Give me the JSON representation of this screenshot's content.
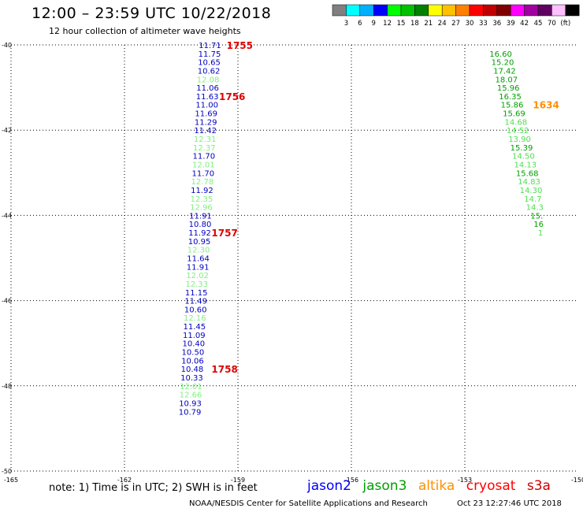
{
  "header": {
    "title": "12:00 – 23:59 UTC 10/22/2018",
    "subtitle": "12 hour collection of altimeter wave heights"
  },
  "colorbar": {
    "colors": [
      "#808080",
      "#00ffff",
      "#00b0ff",
      "#0000ff",
      "#00ff00",
      "#00c000",
      "#008000",
      "#ffff00",
      "#ffc000",
      "#ff8000",
      "#ff0000",
      "#c00000",
      "#800000",
      "#ff00ff",
      "#a000a0",
      "#600060",
      "#ffc0ff",
      "#000000"
    ],
    "labels": [
      "3",
      "6",
      "9",
      "12",
      "15",
      "18",
      "21",
      "24",
      "27",
      "30",
      "33",
      "36",
      "39",
      "42",
      "45",
      "70",
      "(ft)"
    ]
  },
  "footer": {
    "note": "note: 1) Time is in UTC; 2) SWH is in feet",
    "legend": [
      {
        "name": "jason2",
        "color": "#0000ff"
      },
      {
        "name": "jason3",
        "color": "#00a000"
      },
      {
        "name": "altika",
        "color": "#ff9000"
      },
      {
        "name": "cryosat",
        "color": "#ff0000"
      },
      {
        "name": "s3a",
        "color": "#cc0000"
      }
    ],
    "credit": "NOAA/NESDIS Center for Satellite Applications and Research",
    "timestamp": "Oct 23 12:27:46 UTC 2018"
  },
  "chart_data": {
    "type": "scatter",
    "x_ticks": [
      "-165",
      "-162",
      "-159",
      "-156",
      "-153",
      "-150"
    ],
    "y_ticks": [
      "-40",
      "-42",
      "-44",
      "-46",
      "-48",
      "-50"
    ],
    "xlim": [
      -165,
      -150
    ],
    "ylim": [
      -50,
      -40
    ],
    "grid": true,
    "series": [
      {
        "name": "jason2",
        "color_dark": "#0000c0",
        "color_light": "#80f080",
        "points": [
          {
            "x": -159.74,
            "y": -40.0,
            "v": "11.71",
            "c": "d"
          },
          {
            "x": -159.75,
            "y": -40.2,
            "v": "11.75",
            "c": "d"
          },
          {
            "x": -159.76,
            "y": -40.4,
            "v": "10.65",
            "c": "d"
          },
          {
            "x": -159.77,
            "y": -40.6,
            "v": "10.62",
            "c": "d"
          },
          {
            "x": -159.79,
            "y": -40.8,
            "v": "12.08",
            "c": "l"
          },
          {
            "x": -159.8,
            "y": -41.0,
            "v": "11.06",
            "c": "d"
          },
          {
            "x": -159.81,
            "y": -41.2,
            "v": "11.63",
            "c": "d"
          },
          {
            "x": -159.82,
            "y": -41.4,
            "v": "11.00",
            "c": "d"
          },
          {
            "x": -159.84,
            "y": -41.6,
            "v": "11.69",
            "c": "d"
          },
          {
            "x": -159.85,
            "y": -41.8,
            "v": "11.29",
            "c": "d"
          },
          {
            "x": -159.86,
            "y": -42.0,
            "v": "11.42",
            "c": "d"
          },
          {
            "x": -159.87,
            "y": -42.2,
            "v": "12.31",
            "c": "l"
          },
          {
            "x": -159.89,
            "y": -42.4,
            "v": "12.37",
            "c": "l"
          },
          {
            "x": -159.9,
            "y": -42.6,
            "v": "11.70",
            "c": "d"
          },
          {
            "x": -159.91,
            "y": -42.8,
            "v": "12.01",
            "c": "l"
          },
          {
            "x": -159.92,
            "y": -43.0,
            "v": "11.70",
            "c": "d"
          },
          {
            "x": -159.94,
            "y": -43.2,
            "v": "12.78",
            "c": "l"
          },
          {
            "x": -159.95,
            "y": -43.4,
            "v": "11.92",
            "c": "d"
          },
          {
            "x": -159.96,
            "y": -43.6,
            "v": "12.35",
            "c": "l"
          },
          {
            "x": -159.97,
            "y": -43.8,
            "v": "12.96",
            "c": "l"
          },
          {
            "x": -159.99,
            "y": -44.0,
            "v": "11.91",
            "c": "d"
          },
          {
            "x": -160.0,
            "y": -44.2,
            "v": "10.80",
            "c": "d"
          },
          {
            "x": -160.01,
            "y": -44.4,
            "v": "11.92",
            "c": "d"
          },
          {
            "x": -160.02,
            "y": -44.6,
            "v": "10.95",
            "c": "d"
          },
          {
            "x": -160.04,
            "y": -44.8,
            "v": "12.30",
            "c": "l"
          },
          {
            "x": -160.05,
            "y": -45.0,
            "v": "11.64",
            "c": "d"
          },
          {
            "x": -160.06,
            "y": -45.2,
            "v": "11.91",
            "c": "d"
          },
          {
            "x": -160.07,
            "y": -45.4,
            "v": "12.02",
            "c": "l"
          },
          {
            "x": -160.09,
            "y": -45.6,
            "v": "12.33",
            "c": "l"
          },
          {
            "x": -160.1,
            "y": -45.8,
            "v": "11.15",
            "c": "d"
          },
          {
            "x": -160.11,
            "y": -46.0,
            "v": "11.49",
            "c": "d"
          },
          {
            "x": -160.12,
            "y": -46.2,
            "v": "10.60",
            "c": "d"
          },
          {
            "x": -160.14,
            "y": -46.4,
            "v": "12.16",
            "c": "l"
          },
          {
            "x": -160.15,
            "y": -46.6,
            "v": "11.45",
            "c": "d"
          },
          {
            "x": -160.16,
            "y": -46.8,
            "v": "11.09",
            "c": "d"
          },
          {
            "x": -160.17,
            "y": -47.0,
            "v": "10.40",
            "c": "d"
          },
          {
            "x": -160.19,
            "y": -47.2,
            "v": "10.50",
            "c": "d"
          },
          {
            "x": -160.2,
            "y": -47.4,
            "v": "10.06",
            "c": "d"
          },
          {
            "x": -160.21,
            "y": -47.6,
            "v": "10.48",
            "c": "d"
          },
          {
            "x": -160.22,
            "y": -47.8,
            "v": "10.33",
            "c": "d"
          },
          {
            "x": -160.24,
            "y": -48.0,
            "v": "12.01",
            "c": "l"
          },
          {
            "x": -160.25,
            "y": -48.2,
            "v": "12.66",
            "c": "l"
          },
          {
            "x": -160.26,
            "y": -48.4,
            "v": "10.93",
            "c": "d"
          },
          {
            "x": -160.27,
            "y": -48.6,
            "v": "10.79",
            "c": "d"
          }
        ]
      },
      {
        "name": "jason3",
        "color_dark": "#00a000",
        "color_light": "#50e050",
        "points": [
          {
            "x": -152.05,
            "y": -40.2,
            "v": "16.60",
            "c": "d"
          },
          {
            "x": -152.0,
            "y": -40.4,
            "v": "15.20",
            "c": "d"
          },
          {
            "x": -151.95,
            "y": -40.6,
            "v": "17.42",
            "c": "d"
          },
          {
            "x": -151.9,
            "y": -40.8,
            "v": "18.07",
            "c": "d"
          },
          {
            "x": -151.85,
            "y": -41.0,
            "v": "15.96",
            "c": "d"
          },
          {
            "x": -151.8,
            "y": -41.2,
            "v": "16.35",
            "c": "d"
          },
          {
            "x": -151.75,
            "y": -41.4,
            "v": "15.86",
            "c": "d"
          },
          {
            "x": -151.7,
            "y": -41.6,
            "v": "15.69",
            "c": "d"
          },
          {
            "x": -151.65,
            "y": -41.8,
            "v": "14.68",
            "c": "l"
          },
          {
            "x": -151.6,
            "y": -42.0,
            "v": "14.52",
            "c": "l"
          },
          {
            "x": -151.55,
            "y": -42.2,
            "v": "13.90",
            "c": "l"
          },
          {
            "x": -151.5,
            "y": -42.4,
            "v": "15.39",
            "c": "d"
          },
          {
            "x": -151.45,
            "y": -42.6,
            "v": "14.50",
            "c": "l"
          },
          {
            "x": -151.4,
            "y": -42.8,
            "v": "14.13",
            "c": "l"
          },
          {
            "x": -151.35,
            "y": -43.0,
            "v": "15.68",
            "c": "d"
          },
          {
            "x": -151.3,
            "y": -43.2,
            "v": "14.83",
            "c": "l"
          },
          {
            "x": -151.25,
            "y": -43.4,
            "v": "14.30",
            "c": "l"
          },
          {
            "x": -151.2,
            "y": -43.6,
            "v": "14.7",
            "c": "l"
          },
          {
            "x": -151.15,
            "y": -43.8,
            "v": "14.3",
            "c": "l"
          },
          {
            "x": -151.1,
            "y": -44.0,
            "v": "15.",
            "c": "d"
          },
          {
            "x": -151.05,
            "y": -44.2,
            "v": "16",
            "c": "d"
          },
          {
            "x": -151.0,
            "y": -44.4,
            "v": "1",
            "c": "l"
          }
        ]
      }
    ],
    "time_labels": [
      {
        "x": -159.3,
        "y": -40.0,
        "text": "1755",
        "color": "#e00000"
      },
      {
        "x": -159.5,
        "y": -41.2,
        "text": "1756",
        "color": "#e00000"
      },
      {
        "x": -159.7,
        "y": -44.4,
        "text": "1757",
        "color": "#e00000"
      },
      {
        "x": -159.7,
        "y": -47.6,
        "text": "1758",
        "color": "#e00000"
      },
      {
        "x": -151.2,
        "y": -41.4,
        "text": "1634",
        "color": "#ff9000"
      }
    ]
  }
}
